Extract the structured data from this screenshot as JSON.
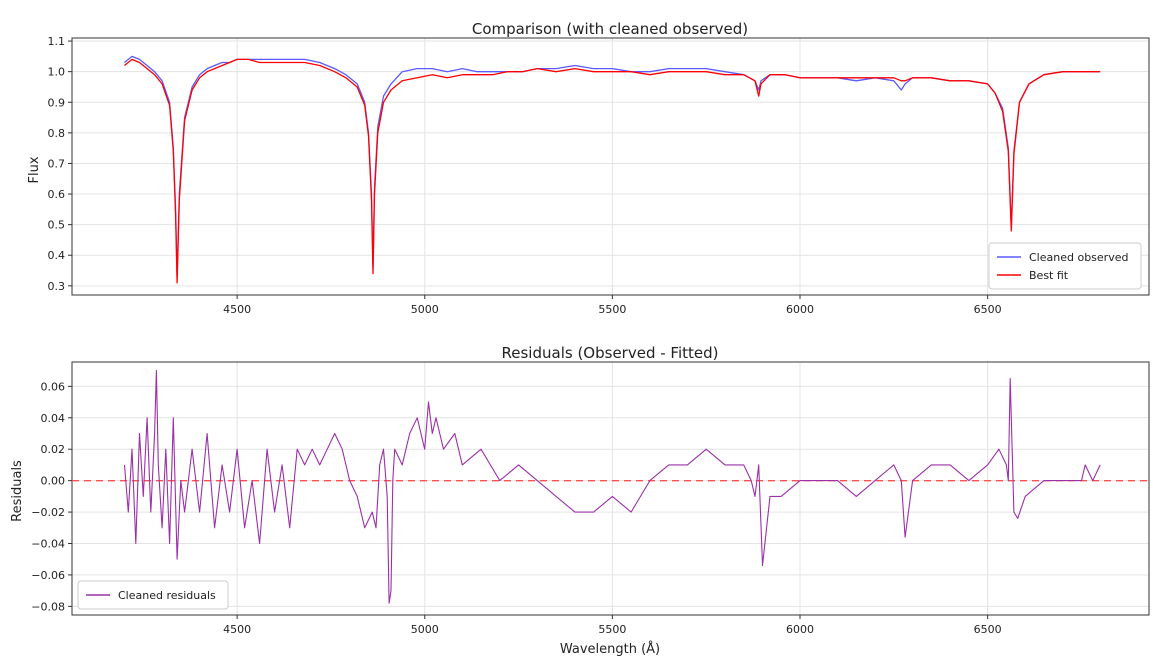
{
  "chart_data": [
    {
      "type": "line",
      "title": "Comparison (with cleaned observed)",
      "xlabel": "",
      "ylabel": "Flux",
      "xlim": [
        4060,
        6930
      ],
      "ylim": [
        0.27,
        1.11
      ],
      "xticks": [
        4500,
        5000,
        5500,
        6000,
        6500
      ],
      "yticks": [
        0.3,
        0.4,
        0.5,
        0.6,
        0.7,
        0.8,
        0.9,
        1.0,
        1.1
      ],
      "grid": true,
      "legend_position": "lower-right",
      "series": [
        {
          "name": "Cleaned observed",
          "color": "#5a5aff",
          "x": [
            4200,
            4220,
            4240,
            4260,
            4280,
            4300,
            4320,
            4330,
            4336,
            4340,
            4346,
            4360,
            4380,
            4400,
            4420,
            4440,
            4460,
            4480,
            4500,
            4530,
            4560,
            4600,
            4640,
            4680,
            4720,
            4760,
            4790,
            4820,
            4840,
            4850,
            4858,
            4862,
            4866,
            4875,
            4890,
            4910,
            4940,
            4980,
            5020,
            5060,
            5100,
            5140,
            5180,
            5220,
            5260,
            5300,
            5350,
            5400,
            5450,
            5500,
            5550,
            5600,
            5650,
            5700,
            5750,
            5800,
            5850,
            5880,
            5890,
            5896,
            5920,
            5960,
            6000,
            6050,
            6100,
            6150,
            6200,
            6250,
            6270,
            6280,
            6300,
            6350,
            6400,
            6450,
            6500,
            6520,
            6540,
            6555,
            6563,
            6570,
            6585,
            6610,
            6650,
            6700,
            6750,
            6800
          ],
          "y": [
            1.03,
            1.05,
            1.04,
            1.02,
            1.0,
            0.97,
            0.9,
            0.75,
            0.55,
            0.33,
            0.6,
            0.85,
            0.95,
            0.99,
            1.01,
            1.02,
            1.03,
            1.03,
            1.04,
            1.04,
            1.04,
            1.04,
            1.04,
            1.04,
            1.03,
            1.01,
            0.99,
            0.96,
            0.9,
            0.8,
            0.6,
            0.36,
            0.62,
            0.82,
            0.92,
            0.96,
            1.0,
            1.01,
            1.01,
            1.0,
            1.01,
            1.0,
            1.0,
            1.0,
            1.0,
            1.01,
            1.01,
            1.02,
            1.01,
            1.01,
            1.0,
            1.0,
            1.01,
            1.01,
            1.01,
            1.0,
            0.99,
            0.97,
            0.94,
            0.97,
            0.99,
            0.99,
            0.98,
            0.98,
            0.98,
            0.97,
            0.98,
            0.97,
            0.94,
            0.96,
            0.98,
            0.98,
            0.97,
            0.97,
            0.96,
            0.93,
            0.88,
            0.75,
            0.49,
            0.74,
            0.9,
            0.96,
            0.99,
            1.0,
            1.0,
            1.0
          ]
        },
        {
          "name": "Best fit",
          "color": "#ff0000",
          "x": [
            4200,
            4220,
            4240,
            4260,
            4280,
            4300,
            4320,
            4330,
            4336,
            4340,
            4346,
            4360,
            4380,
            4400,
            4420,
            4440,
            4460,
            4480,
            4500,
            4530,
            4560,
            4600,
            4640,
            4680,
            4720,
            4760,
            4790,
            4820,
            4840,
            4850,
            4858,
            4862,
            4866,
            4875,
            4890,
            4910,
            4940,
            4980,
            5020,
            5060,
            5100,
            5140,
            5180,
            5220,
            5260,
            5300,
            5350,
            5400,
            5450,
            5500,
            5550,
            5600,
            5650,
            5700,
            5750,
            5800,
            5850,
            5880,
            5890,
            5896,
            5920,
            5960,
            6000,
            6050,
            6100,
            6150,
            6200,
            6250,
            6270,
            6280,
            6300,
            6350,
            6400,
            6450,
            6500,
            6520,
            6540,
            6555,
            6563,
            6570,
            6585,
            6610,
            6650,
            6700,
            6750,
            6800
          ],
          "y": [
            1.02,
            1.04,
            1.03,
            1.01,
            0.99,
            0.96,
            0.89,
            0.74,
            0.53,
            0.31,
            0.58,
            0.84,
            0.94,
            0.98,
            1.0,
            1.01,
            1.02,
            1.03,
            1.04,
            1.04,
            1.03,
            1.03,
            1.03,
            1.03,
            1.02,
            1.0,
            0.98,
            0.95,
            0.89,
            0.79,
            0.58,
            0.34,
            0.6,
            0.8,
            0.9,
            0.94,
            0.97,
            0.98,
            0.99,
            0.98,
            0.99,
            0.99,
            0.99,
            1.0,
            1.0,
            1.01,
            1.0,
            1.01,
            1.0,
            1.0,
            1.0,
            0.99,
            1.0,
            1.0,
            1.0,
            0.99,
            0.99,
            0.97,
            0.92,
            0.96,
            0.99,
            0.99,
            0.98,
            0.98,
            0.98,
            0.98,
            0.98,
            0.98,
            0.97,
            0.97,
            0.98,
            0.98,
            0.97,
            0.97,
            0.96,
            0.93,
            0.87,
            0.74,
            0.48,
            0.73,
            0.9,
            0.96,
            0.99,
            1.0,
            1.0,
            1.0
          ]
        }
      ]
    },
    {
      "type": "line",
      "title": "Residuals (Observed - Fitted)",
      "xlabel": "Wavelength (Å)",
      "ylabel": "Residuals",
      "xlim": [
        4060,
        6930
      ],
      "ylim": [
        -0.0855,
        0.0755
      ],
      "xticks": [
        4500,
        5000,
        5500,
        6000,
        6500
      ],
      "yticks": [
        -0.08,
        -0.06,
        -0.04,
        -0.02,
        0.0,
        0.02,
        0.04,
        0.06
      ],
      "ytick_labels": [
        "−0.08",
        "−0.06",
        "−0.04",
        "−0.02",
        "0.00",
        "0.02",
        "0.04",
        "0.06"
      ],
      "grid": true,
      "legend_position": "lower-left",
      "reference_line": {
        "y": 0,
        "color": "#ff5050",
        "style": "dashed"
      },
      "series": [
        {
          "name": "Cleaned residuals",
          "color": "#9b30a8",
          "x": [
            4200,
            4210,
            4220,
            4230,
            4240,
            4250,
            4260,
            4270,
            4280,
            4285,
            4290,
            4300,
            4310,
            4320,
            4330,
            4340,
            4350,
            4360,
            4380,
            4400,
            4420,
            4440,
            4460,
            4480,
            4500,
            4520,
            4540,
            4560,
            4580,
            4600,
            4620,
            4640,
            4660,
            4680,
            4700,
            4720,
            4740,
            4760,
            4780,
            4800,
            4820,
            4840,
            4860,
            4870,
            4880,
            4890,
            4900,
            4905,
            4910,
            4915,
            4920,
            4940,
            4960,
            4980,
            5000,
            5010,
            5020,
            5030,
            5050,
            5080,
            5100,
            5150,
            5200,
            5250,
            5300,
            5350,
            5400,
            5450,
            5500,
            5550,
            5600,
            5650,
            5700,
            5750,
            5800,
            5850,
            5870,
            5880,
            5885,
            5890,
            5900,
            5920,
            5950,
            6000,
            6050,
            6100,
            6150,
            6200,
            6250,
            6270,
            6280,
            6300,
            6350,
            6400,
            6450,
            6500,
            6530,
            6550,
            6555,
            6560,
            6570,
            6580,
            6600,
            6650,
            6700,
            6750,
            6760,
            6780,
            6800
          ],
          "y": [
            0.01,
            -0.02,
            0.02,
            -0.04,
            0.03,
            -0.01,
            0.04,
            -0.02,
            0.03,
            0.07,
            0.01,
            -0.03,
            0.02,
            -0.04,
            0.04,
            -0.05,
            0.0,
            -0.02,
            0.02,
            -0.02,
            0.03,
            -0.03,
            0.01,
            -0.02,
            0.02,
            -0.03,
            0.0,
            -0.04,
            0.02,
            -0.02,
            0.01,
            -0.03,
            0.02,
            0.01,
            0.02,
            0.01,
            0.02,
            0.03,
            0.02,
            0.0,
            -0.01,
            -0.03,
            -0.02,
            -0.03,
            0.01,
            0.02,
            -0.01,
            -0.078,
            -0.07,
            0.0,
            0.02,
            0.01,
            0.03,
            0.04,
            0.02,
            0.05,
            0.03,
            0.04,
            0.02,
            0.03,
            0.01,
            0.02,
            0.0,
            0.01,
            0.0,
            -0.01,
            -0.02,
            -0.02,
            -0.01,
            -0.02,
            0.0,
            0.01,
            0.01,
            0.02,
            0.01,
            0.01,
            0.0,
            -0.01,
            0.0,
            0.01,
            -0.054,
            -0.01,
            -0.01,
            0.0,
            0.0,
            0.0,
            -0.01,
            0.0,
            0.01,
            0.0,
            -0.036,
            0.0,
            0.01,
            0.01,
            0.0,
            0.01,
            0.02,
            0.01,
            0.0,
            0.065,
            -0.02,
            -0.024,
            -0.01,
            0.0,
            0.0,
            0.0,
            0.01,
            0.0,
            0.01
          ]
        }
      ]
    }
  ]
}
